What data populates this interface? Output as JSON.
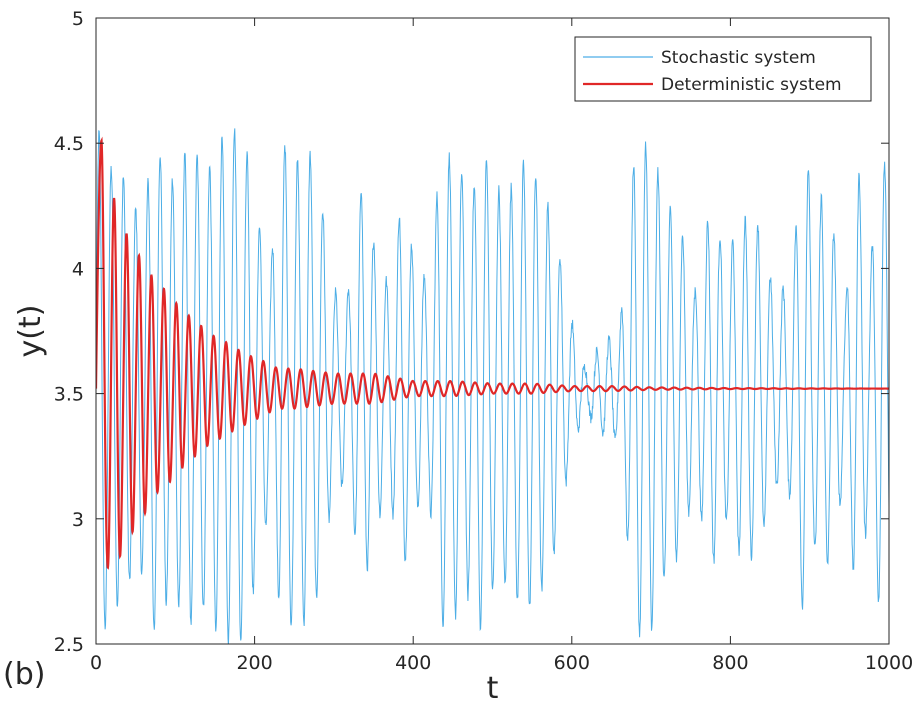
{
  "panel_label": "(b)",
  "chart_data": {
    "type": "line",
    "title": "",
    "xlabel": "t",
    "ylabel": "y(t)",
    "xlim": [
      0,
      1000
    ],
    "ylim": [
      2.5,
      5
    ],
    "xticks": [
      0,
      200,
      400,
      600,
      800,
      1000
    ],
    "yticks": [
      2.5,
      3,
      3.5,
      4,
      4.5,
      5
    ],
    "xtick_labels": [
      "0",
      "200",
      "400",
      "600",
      "800",
      "1000"
    ],
    "ytick_labels": [
      "2.5",
      "3",
      "3.5",
      "4",
      "4.5",
      "5"
    ],
    "grid": false,
    "legend_position": "top-right",
    "series": [
      {
        "name": "Stochastic system",
        "color": "#4DAEE6",
        "period": 15.7,
        "peaks": [
          [
            5,
            4.54
          ],
          [
            20,
            2.65
          ],
          [
            33,
            4.38
          ],
          [
            48,
            4.23
          ],
          [
            62,
            2.77
          ],
          [
            75,
            4.53
          ],
          [
            90,
            4.36
          ],
          [
            100,
            2.68
          ],
          [
            112,
            4.45
          ],
          [
            125,
            4.46
          ],
          [
            140,
            2.67
          ],
          [
            152,
            4.5
          ],
          [
            165,
            4.52
          ],
          [
            176,
            4.56
          ],
          [
            193,
            2.6
          ],
          [
            205,
            4.18
          ],
          [
            220,
            4.0
          ],
          [
            235,
            4.51
          ],
          [
            255,
            2.62
          ],
          [
            268,
            4.48
          ],
          [
            283,
            4.3
          ],
          [
            300,
            3.9
          ],
          [
            320,
            3.92
          ],
          [
            335,
            4.34
          ],
          [
            355,
            4.04
          ],
          [
            370,
            3.92
          ],
          [
            385,
            4.27
          ],
          [
            405,
            4.0
          ],
          [
            420,
            3.95
          ],
          [
            435,
            4.46
          ],
          [
            450,
            4.44
          ],
          [
            465,
            2.68
          ],
          [
            477,
            4.32
          ],
          [
            487,
            2.53
          ],
          [
            500,
            4.32
          ],
          [
            520,
            4.3
          ],
          [
            540,
            4.42
          ],
          [
            560,
            4.35
          ],
          [
            580,
            4.15
          ],
          [
            595,
            3.85
          ],
          [
            615,
            3.6
          ],
          [
            640,
            3.7
          ],
          [
            660,
            3.3
          ],
          [
            680,
            4.5
          ],
          [
            700,
            4.5
          ],
          [
            720,
            2.8
          ],
          [
            735,
            4.2
          ],
          [
            755,
            3.9
          ],
          [
            775,
            4.25
          ],
          [
            795,
            4.05
          ],
          [
            815,
            4.2
          ],
          [
            835,
            4.18
          ],
          [
            855,
            3.9
          ],
          [
            875,
            3.1
          ],
          [
            895,
            4.51
          ],
          [
            905,
            2.9
          ],
          [
            915,
            4.29
          ],
          [
            930,
            4.15
          ],
          [
            945,
            3.85
          ],
          [
            960,
            4.45
          ],
          [
            975,
            3.95
          ],
          [
            990,
            4.5
          ],
          [
            998,
            2.68
          ]
        ]
      },
      {
        "name": "Deterministic system",
        "color": "#E02727",
        "period": 15.7,
        "equilibrium": 3.52,
        "start": 3.52,
        "peaks": [
          [
            7,
            4.51
          ],
          [
            14,
            2.81
          ],
          [
            26,
            4.3
          ],
          [
            34,
            2.94
          ],
          [
            42,
            4.17
          ],
          [
            50,
            3.02
          ],
          [
            58,
            4.08
          ],
          [
            66,
            3.09
          ],
          [
            73,
            3.99
          ],
          [
            81,
            3.15
          ],
          [
            89,
            3.94
          ],
          [
            97,
            3.19
          ],
          [
            105,
            3.87
          ],
          [
            113,
            3.24
          ],
          [
            120,
            3.82
          ],
          [
            128,
            3.27
          ],
          [
            136,
            3.77
          ],
          [
            144,
            3.31
          ],
          [
            152,
            3.73
          ],
          [
            160,
            3.33
          ],
          [
            168,
            3.7
          ],
          [
            176,
            3.36
          ],
          [
            183,
            3.67
          ],
          [
            191,
            3.38
          ],
          [
            199,
            3.64
          ],
          [
            207,
            3.4
          ],
          [
            215,
            3.62
          ],
          [
            230,
            3.44
          ],
          [
            250,
            3.6
          ],
          [
            300,
            3.46
          ],
          [
            350,
            3.58
          ],
          [
            400,
            3.49
          ],
          [
            450,
            3.55
          ],
          [
            500,
            3.5
          ],
          [
            550,
            3.54
          ],
          [
            600,
            3.51
          ],
          [
            650,
            3.53
          ],
          [
            700,
            3.515
          ],
          [
            800,
            3.522
          ],
          [
            1000,
            3.52
          ]
        ]
      }
    ]
  }
}
